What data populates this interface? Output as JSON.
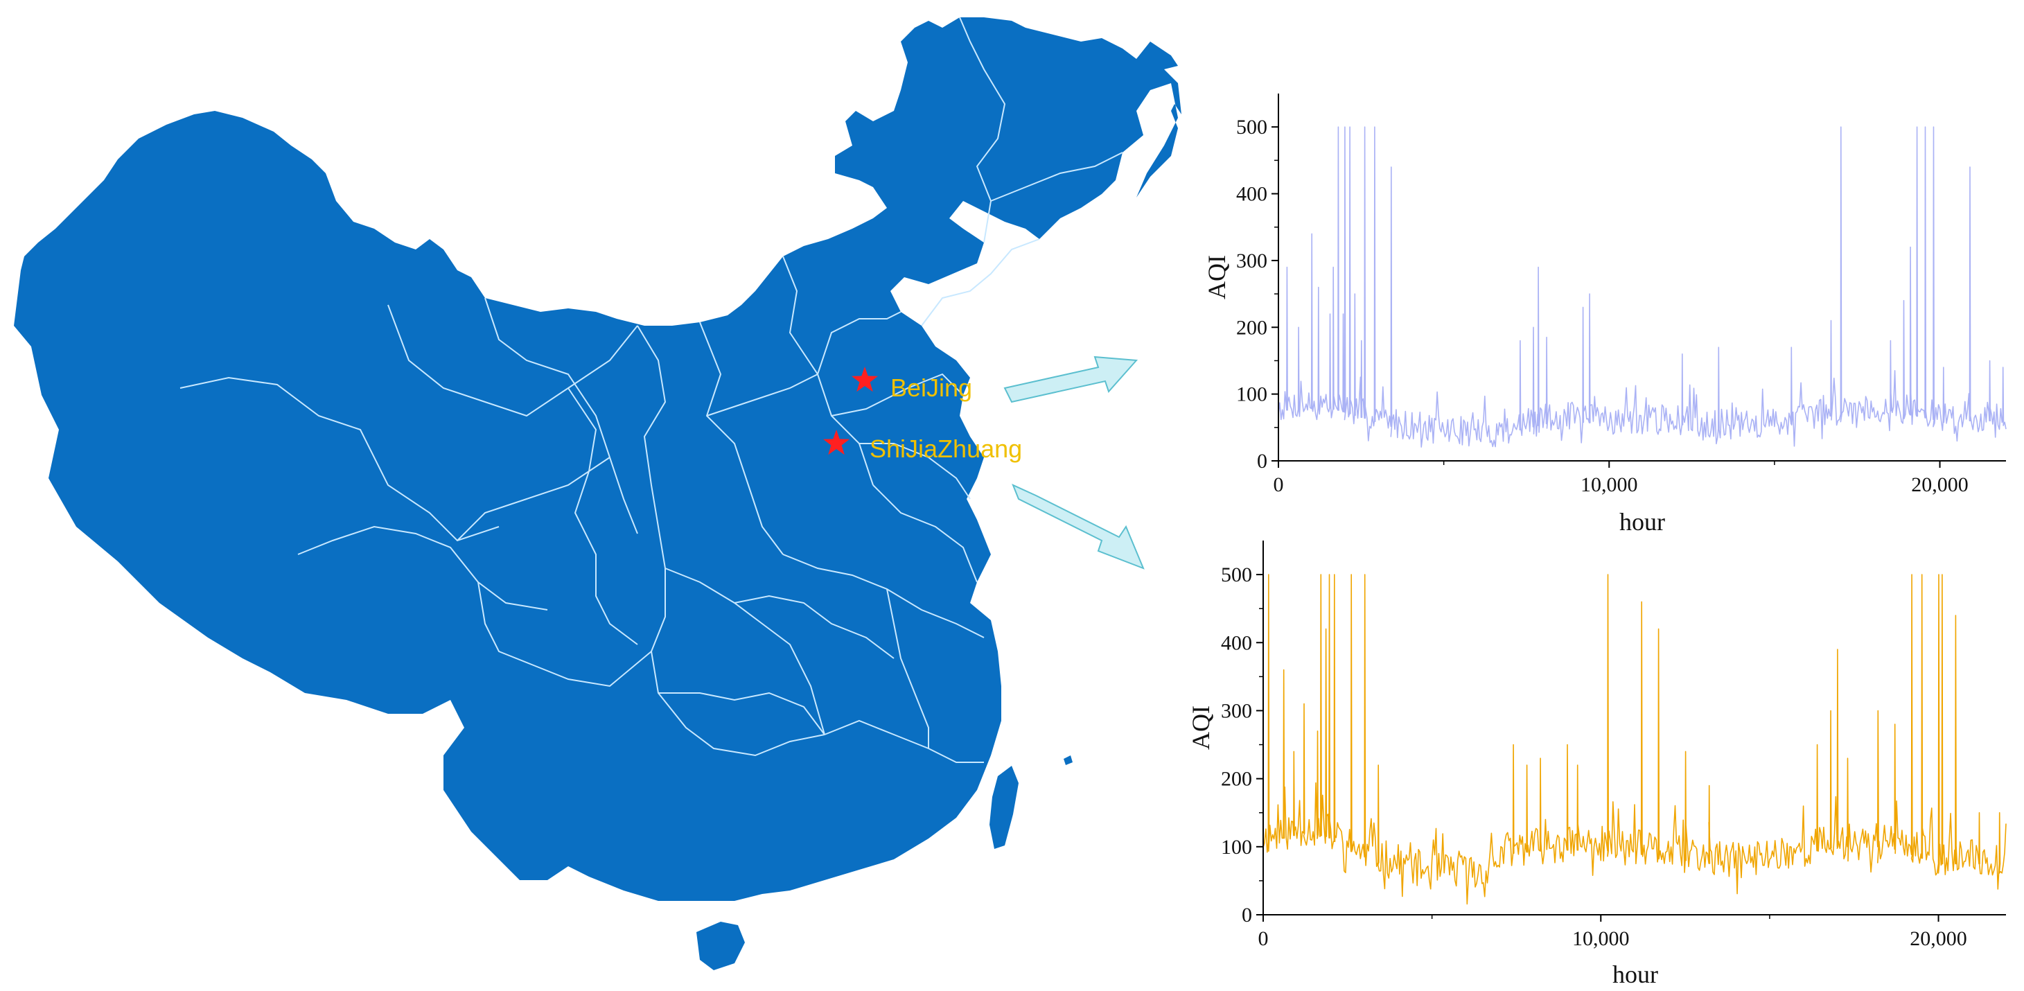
{
  "colors": {
    "map_fill": "#0a6fc2",
    "province_border": "#c8e8ff",
    "city_marker": "#ff2020",
    "city_label": "#f0c000",
    "arrow_fill": "#cdeff5",
    "arrow_stroke": "#5bbfcf",
    "series_beijing": "#aab2f5",
    "series_shijiazhuang": "#f0a500"
  },
  "map": {
    "cities": [
      {
        "name": "BeiJing",
        "marker": "star"
      },
      {
        "name": "ShiJiaZhuang",
        "marker": "star"
      }
    ]
  },
  "chart_data": [
    {
      "type": "line",
      "city": "BeiJing",
      "xlabel": "hour",
      "ylabel": "AQI",
      "xlim": [
        0,
        22000
      ],
      "ylim": [
        0,
        550
      ],
      "xticks": [
        0,
        10000,
        20000
      ],
      "xtick_labels": [
        "0",
        "10,000",
        "20,000"
      ],
      "yticks": [
        0,
        100,
        200,
        300,
        400,
        500
      ],
      "ytick_labels": [
        "0",
        "100",
        "200",
        "300",
        "400",
        "500"
      ],
      "series": [
        {
          "color": "#aab2f5",
          "baseline": [
            [
              0,
              75
            ],
            [
              1500,
              80
            ],
            [
              2200,
              70
            ],
            [
              3500,
              50
            ],
            [
              5000,
              40
            ],
            [
              6500,
              35
            ],
            [
              7200,
              45
            ],
            [
              8500,
              60
            ],
            [
              10000,
              55
            ],
            [
              12000,
              55
            ],
            [
              14000,
              45
            ],
            [
              15500,
              55
            ],
            [
              17000,
              70
            ],
            [
              18500,
              75
            ],
            [
              20000,
              60
            ],
            [
              22000,
              60
            ]
          ],
          "noise": 45,
          "seed": 7,
          "spikes": [
            [
              250,
              290
            ],
            [
              600,
              200
            ],
            [
              1000,
              340
            ],
            [
              1200,
              260
            ],
            [
              1550,
              220
            ],
            [
              1650,
              290
            ],
            [
              1800,
              500
            ],
            [
              1950,
              220
            ],
            [
              2000,
              500
            ],
            [
              2150,
              500
            ],
            [
              2300,
              250
            ],
            [
              2500,
              180
            ],
            [
              2600,
              500
            ],
            [
              2900,
              500
            ],
            [
              3400,
              440
            ],
            [
              7300,
              180
            ],
            [
              7700,
              200
            ],
            [
              7850,
              290
            ],
            [
              8100,
              185
            ],
            [
              9200,
              230
            ],
            [
              9400,
              250
            ],
            [
              12200,
              160
            ],
            [
              13300,
              170
            ],
            [
              15500,
              170
            ],
            [
              16700,
              210
            ],
            [
              17000,
              500
            ],
            [
              18500,
              180
            ],
            [
              18900,
              240
            ],
            [
              19100,
              320
            ],
            [
              19300,
              500
            ],
            [
              19550,
              500
            ],
            [
              19800,
              500
            ],
            [
              20100,
              140
            ],
            [
              20900,
              440
            ],
            [
              21500,
              150
            ],
            [
              21900,
              140
            ]
          ]
        }
      ]
    },
    {
      "type": "line",
      "city": "ShiJiaZhuang",
      "xlabel": "hour",
      "ylabel": "AQI",
      "xlim": [
        0,
        22000
      ],
      "ylim": [
        0,
        550
      ],
      "xticks": [
        0,
        10000,
        20000
      ],
      "xtick_labels": [
        "0",
        "10,000",
        "20,000"
      ],
      "yticks": [
        0,
        100,
        200,
        300,
        400,
        500
      ],
      "ytick_labels": [
        "0",
        "100",
        "200",
        "300",
        "400",
        "500"
      ],
      "series": [
        {
          "color": "#f0a500",
          "baseline": [
            [
              0,
              105
            ],
            [
              1200,
              120
            ],
            [
              1900,
              115
            ],
            [
              2500,
              95
            ],
            [
              3500,
              75
            ],
            [
              5000,
              55
            ],
            [
              6500,
              55
            ],
            [
              7300,
              90
            ],
            [
              8500,
              95
            ],
            [
              10000,
              95
            ],
            [
              11000,
              90
            ],
            [
              12500,
              80
            ],
            [
              14000,
              70
            ],
            [
              15500,
              85
            ],
            [
              17000,
              100
            ],
            [
              18500,
              100
            ],
            [
              20000,
              75
            ],
            [
              22000,
              75
            ]
          ],
          "noise": 55,
          "seed": 11,
          "spikes": [
            [
              150,
              500
            ],
            [
              600,
              360
            ],
            [
              900,
              240
            ],
            [
              1200,
              310
            ],
            [
              1600,
              270
            ],
            [
              1700,
              500
            ],
            [
              1850,
              420
            ],
            [
              1950,
              500
            ],
            [
              2100,
              500
            ],
            [
              2600,
              500
            ],
            [
              3000,
              500
            ],
            [
              3400,
              220
            ],
            [
              7400,
              250
            ],
            [
              7800,
              220
            ],
            [
              8200,
              230
            ],
            [
              9000,
              250
            ],
            [
              9300,
              220
            ],
            [
              10200,
              500
            ],
            [
              11200,
              460
            ],
            [
              11700,
              420
            ],
            [
              12500,
              240
            ],
            [
              13200,
              190
            ],
            [
              16400,
              250
            ],
            [
              16800,
              300
            ],
            [
              17000,
              390
            ],
            [
              17300,
              230
            ],
            [
              18200,
              300
            ],
            [
              18700,
              280
            ],
            [
              19200,
              500
            ],
            [
              19500,
              500
            ],
            [
              20000,
              500
            ],
            [
              20100,
              500
            ],
            [
              20500,
              440
            ],
            [
              21200,
              150
            ],
            [
              21800,
              150
            ]
          ]
        }
      ]
    }
  ]
}
